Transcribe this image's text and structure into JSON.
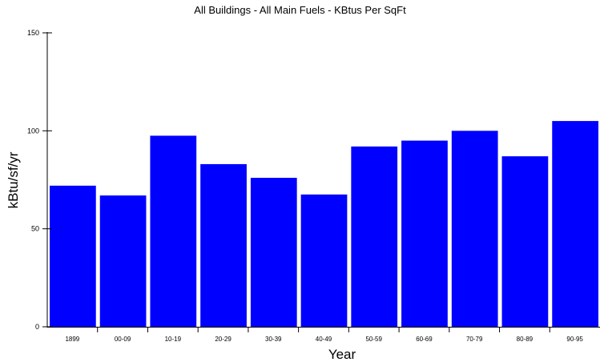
{
  "chart_data": {
    "type": "bar",
    "title": "All Buildings - All Main Fuels - KBtus Per SqFt",
    "xlabel": "Year",
    "ylabel": "kBtu/sf/yr",
    "categories": [
      "1899",
      "00-09",
      "10-19",
      "20-29",
      "30-39",
      "40-49",
      "50-59",
      "60-69",
      "70-79",
      "80-89",
      "90-95"
    ],
    "values": [
      72,
      67,
      97.5,
      83,
      76,
      67.5,
      92,
      95,
      100,
      87,
      105
    ],
    "ylim": [
      0,
      150
    ],
    "yticks": [
      "0",
      "50",
      "100",
      "150"
    ],
    "grid": false,
    "bar_color": "#0000ff"
  }
}
